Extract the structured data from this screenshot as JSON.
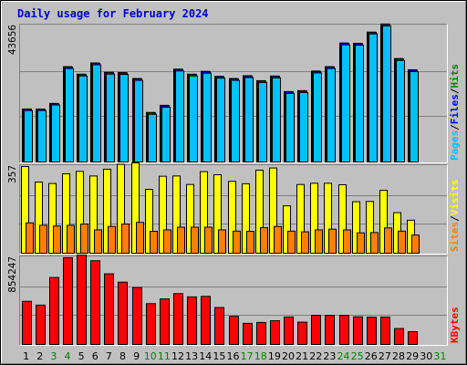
{
  "chart_data": {
    "type": "bar",
    "title": "Daily usage for February 2024",
    "categories": [
      "1",
      "2",
      "3",
      "4",
      "5",
      "6",
      "7",
      "8",
      "9",
      "10",
      "11",
      "12",
      "13",
      "14",
      "15",
      "16",
      "17",
      "18",
      "19",
      "20",
      "21",
      "22",
      "23",
      "24",
      "25",
      "26",
      "27",
      "28",
      "29",
      "30",
      "31"
    ],
    "weekend_days": [
      "3",
      "4",
      "10",
      "11",
      "17",
      "18",
      "24",
      "25",
      "31"
    ],
    "panels": [
      {
        "id": "top",
        "max_label": "43656",
        "ymax": 43656,
        "right_label": [
          "Pages",
          "/",
          "Files",
          "/",
          "Hits"
        ],
        "right_label_colors": [
          "#00c0ff",
          "#000000",
          "#0000ff",
          "#000000",
          "#008000"
        ],
        "series": [
          {
            "name": "Hits",
            "color": "#008080",
            "values": [
              17000,
              17000,
              18800,
              30600,
              28200,
              31800,
              28800,
              28700,
              26800,
              15900,
              18200,
              29800,
              28200,
              29100,
              27500,
              26800,
              27700,
              26100,
              27600,
              22600,
              22900,
              29200,
              30600,
              38200,
              38100,
              41700,
              44300,
              33200,
              29600,
              null,
              null
            ]
          },
          {
            "name": "Files",
            "color": "#0000ff",
            "values": [
              17000,
              16900,
              18700,
              30500,
              28100,
              31700,
              28700,
              28600,
              26700,
              15800,
              18100,
              29700,
              28100,
              29000,
              27400,
              26700,
              27600,
              26000,
              27500,
              22500,
              22800,
              29100,
              30500,
              38100,
              38000,
              41600,
              44200,
              33100,
              29500,
              null,
              null
            ]
          },
          {
            "name": "Pages",
            "color": "#00c0ff",
            "values": [
              16500,
              16500,
              18300,
              30000,
              27600,
              31200,
              28200,
              28100,
              26200,
              15300,
              17600,
              29200,
              27600,
              28500,
              26900,
              26200,
              27100,
              25500,
              27000,
              22000,
              22300,
              28600,
              30000,
              37600,
              37500,
              41100,
              43700,
              32600,
              29000,
              null,
              null
            ]
          }
        ]
      },
      {
        "id": "middle",
        "max_label": "357",
        "ymax": 357,
        "right_label": [
          "Sites",
          "/",
          "Visits"
        ],
        "right_label_colors": [
          "#ff8000",
          "#000000",
          "#ffff00"
        ],
        "series": [
          {
            "name": "Visits",
            "color": "#ffff00",
            "values": [
              357,
              293,
              287,
              327,
              337,
              318,
              346,
              366,
              372,
              263,
              317,
              318,
              283,
              336,
              323,
              296,
              286,
              342,
              351,
              195,
              283,
              288,
              288,
              282,
              212,
              213,
              259,
              167,
              136,
              null,
              null
            ]
          },
          {
            "name": "Sites",
            "color": "#ff8000",
            "values": [
              125,
              115,
              112,
              115,
              120,
              96,
              110,
              120,
              127,
              90,
              96,
              107,
              107,
              107,
              96,
              91,
              90,
              105,
              110,
              91,
              88,
              96,
              99,
              96,
              84,
              85,
              104,
              91,
              75,
              null,
              null
            ]
          }
        ]
      },
      {
        "id": "bottom",
        "max_label": "854247",
        "ymax": 854247,
        "right_label": [
          "KBytes"
        ],
        "right_label_colors": [
          "#ff0000"
        ],
        "series": [
          {
            "name": "KBytes",
            "color": "#ff0000",
            "values": [
              425000,
              388000,
              660000,
              855000,
              882000,
              825000,
              696000,
              614000,
              560000,
              402000,
              449000,
              501000,
              469000,
              474000,
              364000,
              277000,
              208000,
              217000,
              234000,
              271000,
              220000,
              287000,
              286000,
              286000,
              273000,
              269000,
              270000,
              157000,
              126000,
              null,
              null
            ]
          }
        ]
      }
    ]
  }
}
